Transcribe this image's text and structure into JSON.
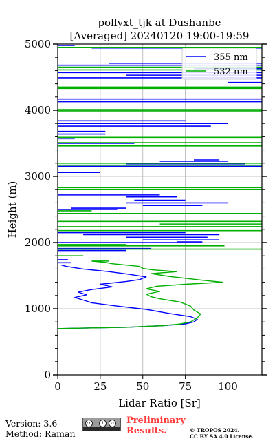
{
  "title_line1": "pollyxt_tjk at Dushanbe",
  "title_line2": "[Averaged] 20240120 19:00-19:59",
  "footer": {
    "version": "Version: 3.6",
    "method": "Method: Raman",
    "preliminary_line1": "Preliminary",
    "preliminary_line2": "Results.",
    "copyright_line1": "© TROPOS 2024.",
    "copyright_line2": "CC BY SA 4.0 License.",
    "badge_icon": "cc-by-sa-icon"
  },
  "chart_data": {
    "type": "line",
    "title": "pollyxt_tjk at Dushanbe [Averaged] 20240120 19:00-19:59",
    "xlabel": "Lidar Ratio [Sr]",
    "ylabel": "Height (m)",
    "xlim": [
      0,
      120
    ],
    "ylim": [
      0,
      5000
    ],
    "xticks": [
      0,
      25,
      50,
      75,
      100
    ],
    "yticks": [
      0,
      1000,
      2000,
      3000,
      4000,
      5000
    ],
    "grid": true,
    "legend_position": "top-right",
    "series": [
      {
        "name": "355 nm",
        "color": "#0000ff",
        "profile": [
          [
            700,
            0
          ],
          [
            720,
            40
          ],
          [
            745,
            62
          ],
          [
            770,
            75
          ],
          [
            800,
            80
          ],
          [
            840,
            82
          ],
          [
            880,
            78
          ],
          [
            930,
            65
          ],
          [
            990,
            52
          ],
          [
            1040,
            35
          ],
          [
            1090,
            20
          ],
          [
            1130,
            15
          ],
          [
            1170,
            10
          ],
          [
            1210,
            17
          ],
          [
            1250,
            12
          ],
          [
            1290,
            20
          ],
          [
            1330,
            32
          ],
          [
            1370,
            25
          ],
          [
            1410,
            40
          ],
          [
            1440,
            48
          ],
          [
            1480,
            52
          ],
          [
            1520,
            42
          ],
          [
            1560,
            30
          ],
          [
            1600,
            15
          ],
          [
            1640,
            5
          ],
          [
            1660,
            2
          ]
        ],
        "segments": [
          [
            1695,
            0,
            8
          ],
          [
            1740,
            0,
            6
          ],
          [
            1880,
            0,
            40
          ],
          [
            1910,
            0,
            55
          ],
          [
            2000,
            0,
            70
          ],
          [
            2010,
            70,
            85
          ],
          [
            2040,
            50,
            95
          ],
          [
            2080,
            40,
            88
          ],
          [
            2120,
            15,
            95
          ],
          [
            2150,
            0,
            75
          ],
          [
            2500,
            0,
            35
          ],
          [
            2520,
            8,
            40
          ],
          [
            2560,
            50,
            85
          ],
          [
            2600,
            40,
            100
          ],
          [
            2640,
            45,
            75
          ],
          [
            2690,
            40,
            70
          ],
          [
            2720,
            0,
            60
          ],
          [
            3060,
            0,
            25
          ],
          [
            3150,
            0,
            120
          ],
          [
            3190,
            40,
            110
          ],
          [
            3230,
            60,
            100
          ],
          [
            3250,
            80,
            95
          ],
          [
            3470,
            10,
            50
          ],
          [
            3500,
            0,
            45
          ],
          [
            3570,
            0,
            10
          ],
          [
            3640,
            0,
            28
          ],
          [
            3680,
            0,
            28
          ],
          [
            3760,
            0,
            90
          ],
          [
            3800,
            0,
            100
          ],
          [
            3840,
            0,
            75
          ],
          [
            4130,
            0,
            120
          ],
          [
            4170,
            0,
            120
          ],
          [
            4420,
            100,
            120
          ],
          [
            4490,
            0,
            120
          ],
          [
            4530,
            40,
            120
          ],
          [
            4570,
            0,
            120
          ],
          [
            4630,
            80,
            120
          ],
          [
            4680,
            0,
            120
          ],
          [
            4710,
            30,
            120
          ],
          [
            4940,
            20,
            120
          ],
          [
            4980,
            0,
            10
          ]
        ]
      },
      {
        "name": "532 nm",
        "color": "#00b000",
        "profile": [
          [
            700,
            0
          ],
          [
            720,
            40
          ],
          [
            745,
            62
          ],
          [
            770,
            72
          ],
          [
            800,
            78
          ],
          [
            860,
            82
          ],
          [
            920,
            84
          ],
          [
            980,
            80
          ],
          [
            1040,
            78
          ],
          [
            1100,
            72
          ],
          [
            1150,
            60
          ],
          [
            1180,
            55
          ],
          [
            1220,
            52
          ],
          [
            1260,
            60
          ],
          [
            1300,
            52
          ],
          [
            1340,
            58
          ],
          [
            1370,
            75
          ],
          [
            1400,
            97
          ],
          [
            1430,
            85
          ],
          [
            1460,
            75
          ],
          [
            1490,
            65
          ],
          [
            1530,
            55
          ],
          [
            1560,
            70
          ],
          [
            1590,
            55
          ],
          [
            1610,
            50
          ],
          [
            1640,
            48
          ],
          [
            1680,
            32
          ],
          [
            1700,
            28
          ],
          [
            1720,
            20
          ]
        ],
        "segments": [
          [
            1720,
            20,
            30
          ],
          [
            1800,
            0,
            15
          ],
          [
            1900,
            0,
            120
          ],
          [
            1950,
            0,
            98
          ],
          [
            1970,
            0,
            40
          ],
          [
            2180,
            0,
            120
          ],
          [
            2240,
            0,
            120
          ],
          [
            2280,
            60,
            120
          ],
          [
            2320,
            0,
            120
          ],
          [
            2440,
            0,
            120
          ],
          [
            2480,
            0,
            20
          ],
          [
            2800,
            0,
            120
          ],
          [
            2830,
            0,
            120
          ],
          [
            3170,
            0,
            120
          ],
          [
            3200,
            0,
            120
          ],
          [
            3460,
            0,
            120
          ],
          [
            3510,
            0,
            120
          ],
          [
            3590,
            0,
            120
          ],
          [
            3990,
            0,
            120
          ],
          [
            4010,
            0,
            120
          ],
          [
            4330,
            0,
            120
          ],
          [
            4350,
            0,
            120
          ],
          [
            4610,
            0,
            120
          ],
          [
            4650,
            0,
            120
          ],
          [
            4950,
            0,
            120
          ]
        ]
      }
    ]
  }
}
